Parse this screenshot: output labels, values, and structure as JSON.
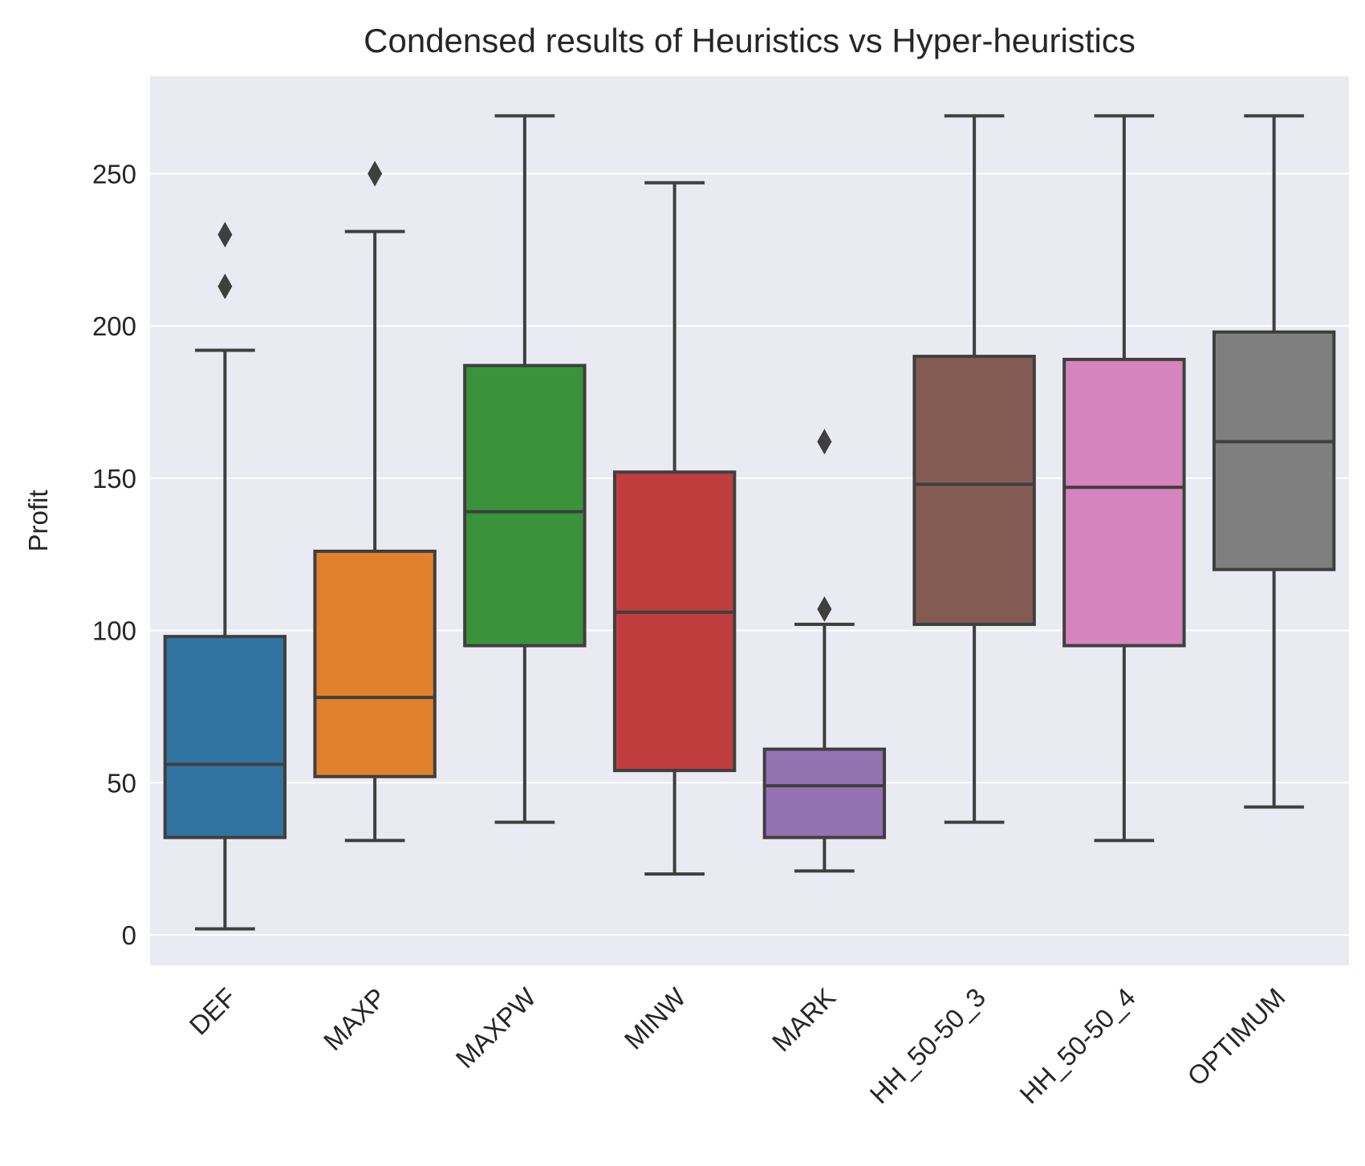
{
  "chart_data": {
    "type": "box",
    "title": "Condensed results of Heuristics vs Hyper-heuristics",
    "xlabel": "",
    "ylabel": "Profit",
    "ylim": [
      -10,
      282
    ],
    "yticks": [
      0,
      50,
      100,
      150,
      200,
      250
    ],
    "grid": true,
    "legend": "none",
    "background": "#eaeaf2",
    "line_color": "#3f3f3f",
    "categories": [
      "DEF",
      "MAXP",
      "MAXPW",
      "MINW",
      "MARK",
      "HH_50-50_3",
      "HH_50-50_4",
      "OPTIMUM"
    ],
    "boxes": [
      {
        "category": "DEF",
        "color": "#3274a1",
        "whisker_low": 2,
        "q1": 32,
        "median": 56,
        "q3": 98,
        "whisker_high": 192,
        "outliers": [
          213,
          230
        ]
      },
      {
        "category": "MAXP",
        "color": "#e1812c",
        "whisker_low": 31,
        "q1": 52,
        "median": 78,
        "q3": 126,
        "whisker_high": 231,
        "outliers": [
          250
        ]
      },
      {
        "category": "MAXPW",
        "color": "#3a923a",
        "whisker_low": 37,
        "q1": 95,
        "median": 139,
        "q3": 187,
        "whisker_high": 269,
        "outliers": []
      },
      {
        "category": "MINW",
        "color": "#c03d3e",
        "whisker_low": 20,
        "q1": 54,
        "median": 106,
        "q3": 152,
        "whisker_high": 247,
        "outliers": []
      },
      {
        "category": "MARK",
        "color": "#9372b2",
        "whisker_low": 21,
        "q1": 32,
        "median": 49,
        "q3": 61,
        "whisker_high": 102,
        "outliers": [
          107,
          162
        ]
      },
      {
        "category": "HH_50-50_3",
        "color": "#845b53",
        "whisker_low": 37,
        "q1": 102,
        "median": 148,
        "q3": 190,
        "whisker_high": 269,
        "outliers": []
      },
      {
        "category": "HH_50-50_4",
        "color": "#d684bd",
        "whisker_low": 31,
        "q1": 95,
        "median": 147,
        "q3": 189,
        "whisker_high": 269,
        "outliers": []
      },
      {
        "category": "OPTIMUM",
        "color": "#7f7f7f",
        "whisker_low": 42,
        "q1": 120,
        "median": 162,
        "q3": 198,
        "whisker_high": 269,
        "outliers": []
      }
    ]
  }
}
